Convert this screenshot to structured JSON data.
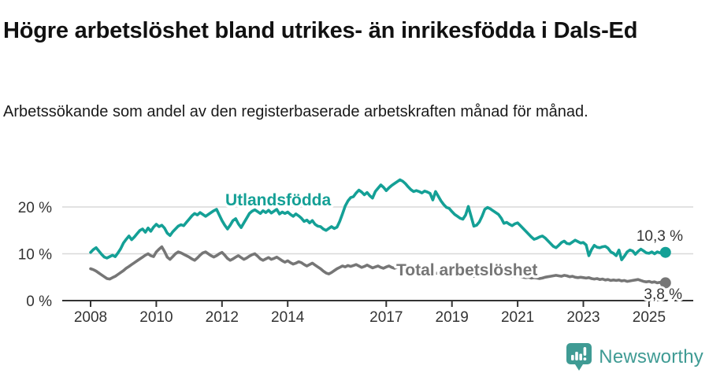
{
  "page": {
    "title": "Högre arbetslöshet bland utrikes- än inrikesfödda i Dals-Ed",
    "subtitle": "Arbetssökande som andel av den registerbaserade arbetskraften månad för månad."
  },
  "footer": {
    "brand": "Newsworthy",
    "icon": "newsworthy-pin-bar-chart-icon"
  },
  "colors": {
    "accent_teal": "#14a096",
    "series_gray": "#767676",
    "grid": "#d9d9d9",
    "axis": "#333333",
    "tick_text": "#333333",
    "end_label_text": "#333333",
    "title_text": "#111111",
    "logo_teal": "#3f9b94",
    "background": "#ffffff"
  },
  "chart_data": {
    "type": "line",
    "title": "",
    "xlabel": "",
    "ylabel": "",
    "x_unit": "month",
    "x_start_year": 2008,
    "x_start_month": 1,
    "x_tick_labels": [
      "2008",
      "2010",
      "2012",
      "2014",
      "2017",
      "2019",
      "2021",
      "2023",
      "2025"
    ],
    "x_tick_years": [
      2008,
      2010,
      2012,
      2014,
      2017,
      2019,
      2021,
      2023,
      2025
    ],
    "y_ticks": [
      {
        "v": 0,
        "label": "0 %"
      },
      {
        "v": 10,
        "label": "10 %"
      },
      {
        "v": 20,
        "label": "20 %"
      }
    ],
    "ylim": [
      0,
      27
    ],
    "grid": "horizontal",
    "legend_position": "inline-labels",
    "series": [
      {
        "name": "Utlandsfödda",
        "color": "#14a096",
        "end_label": "10,3 %",
        "end_value": 10.3,
        "values": [
          10.3,
          10.9,
          11.3,
          10.6,
          9.9,
          9.3,
          9.1,
          9.4,
          9.7,
          9.4,
          10.2,
          11.1,
          12.3,
          13.1,
          13.8,
          13.0,
          13.6,
          14.3,
          15.0,
          15.3,
          14.6,
          15.5,
          14.8,
          15.7,
          16.3,
          15.8,
          16.1,
          15.5,
          14.4,
          13.9,
          14.7,
          15.3,
          15.9,
          16.2,
          16.0,
          16.7,
          17.4,
          18.1,
          18.6,
          18.3,
          18.8,
          18.4,
          18.0,
          18.4,
          18.8,
          19.2,
          19.5,
          18.3,
          17.1,
          16.1,
          15.3,
          16.1,
          17.1,
          17.5,
          16.4,
          15.6,
          16.6,
          17.6,
          18.6,
          19.1,
          19.4,
          19.0,
          18.6,
          19.2,
          18.8,
          19.3,
          18.7,
          19.1,
          19.5,
          18.5,
          18.9,
          18.6,
          18.9,
          18.4,
          18.0,
          18.5,
          18.1,
          17.6,
          16.9,
          17.2,
          16.6,
          17.1,
          16.3,
          15.9,
          15.8,
          15.3,
          15.0,
          15.4,
          15.8,
          15.4,
          15.7,
          16.9,
          18.5,
          20.2,
          21.3,
          22.0,
          22.2,
          23.0,
          23.6,
          23.2,
          22.6,
          23.1,
          22.4,
          21.9,
          23.3,
          24.0,
          24.7,
          24.2,
          23.5,
          24.1,
          24.6,
          25.0,
          25.4,
          25.8,
          25.5,
          25.0,
          24.3,
          23.7,
          23.3,
          23.5,
          23.3,
          23.0,
          23.4,
          23.2,
          22.9,
          21.5,
          23.3,
          22.3,
          21.3,
          20.5,
          19.9,
          19.7,
          19.0,
          18.4,
          18.0,
          17.6,
          17.4,
          18.3,
          20.1,
          18.0,
          15.9,
          16.1,
          16.8,
          18.0,
          19.5,
          19.9,
          19.6,
          19.2,
          18.8,
          18.4,
          17.6,
          16.5,
          16.7,
          16.3,
          16.0,
          16.4,
          16.6,
          16.0,
          15.4,
          14.8,
          14.2,
          13.6,
          13.1,
          13.3,
          13.6,
          13.8,
          13.4,
          12.8,
          12.2,
          11.6,
          11.3,
          11.8,
          12.4,
          12.7,
          12.2,
          12.1,
          12.5,
          12.9,
          12.6,
          12.3,
          12.4,
          11.9,
          9.6,
          10.9,
          11.8,
          11.4,
          11.3,
          11.5,
          11.6,
          11.2,
          10.4,
          10.1,
          9.6,
          10.8,
          8.7,
          9.5,
          10.4,
          10.8,
          10.6,
          9.9,
          10.5,
          11.0,
          10.6,
          10.2,
          10.1,
          10.4,
          10.0,
          10.4,
          10.2,
          10.4,
          10.3
        ]
      },
      {
        "name": "Total arbetslöshet",
        "color": "#767676",
        "end_label": "3,8 %",
        "end_value": 3.8,
        "values": [
          6.8,
          6.6,
          6.3,
          5.9,
          5.5,
          5.1,
          4.7,
          4.6,
          4.9,
          5.2,
          5.6,
          6.0,
          6.4,
          6.9,
          7.3,
          7.7,
          8.1,
          8.5,
          8.9,
          9.3,
          9.7,
          10.0,
          9.6,
          9.4,
          10.4,
          11.0,
          11.5,
          10.5,
          9.3,
          8.8,
          9.4,
          10.0,
          10.4,
          10.2,
          9.9,
          9.6,
          9.3,
          8.9,
          8.6,
          9.1,
          9.7,
          10.2,
          10.4,
          10.0,
          9.6,
          9.3,
          9.6,
          10.0,
          10.3,
          9.7,
          9.0,
          8.6,
          8.9,
          9.3,
          9.6,
          9.2,
          8.8,
          9.1,
          9.5,
          9.8,
          10.0,
          9.5,
          8.9,
          8.6,
          8.9,
          9.2,
          8.8,
          9.0,
          9.3,
          8.9,
          8.5,
          8.2,
          8.5,
          8.1,
          7.8,
          8.0,
          8.3,
          8.1,
          7.7,
          7.4,
          7.7,
          8.0,
          7.6,
          7.2,
          6.8,
          6.3,
          5.9,
          5.7,
          6.0,
          6.4,
          6.8,
          7.1,
          7.4,
          7.2,
          7.5,
          7.3,
          7.5,
          7.7,
          7.4,
          7.1,
          7.3,
          7.6,
          7.3,
          7.0,
          7.2,
          7.4,
          7.1,
          6.9,
          7.2,
          7.4,
          7.1,
          6.9,
          7.1,
          6.8,
          6.6,
          6.8,
          6.5,
          6.7,
          6.4,
          6.6,
          6.4,
          6.2,
          6.3,
          6.1,
          5.9,
          6.1,
          5.8,
          5.9,
          5.7,
          5.8,
          5.6,
          5.7,
          5.8,
          5.6,
          5.5,
          5.6,
          5.4,
          5.5,
          5.3,
          5.4,
          5.2,
          5.3,
          5.2,
          5.3,
          5.4,
          5.6,
          5.8,
          5.9,
          5.7,
          5.8,
          5.6,
          5.5,
          5.4,
          5.3,
          5.2,
          5.1,
          5.2,
          5.1,
          5.0,
          4.9,
          5.0,
          4.8,
          4.9,
          4.8,
          4.7,
          4.8,
          5.0,
          5.1,
          5.2,
          5.3,
          5.4,
          5.3,
          5.2,
          5.4,
          5.3,
          5.1,
          5.2,
          5.0,
          4.9,
          5.0,
          4.9,
          4.8,
          4.9,
          4.7,
          4.6,
          4.7,
          4.5,
          4.6,
          4.4,
          4.5,
          4.3,
          4.4,
          4.3,
          4.4,
          4.2,
          4.3,
          4.1,
          4.2,
          4.3,
          4.4,
          4.5,
          4.3,
          4.1,
          4.0,
          4.1,
          3.9,
          4.0,
          3.8,
          3.9,
          3.7,
          3.8
        ]
      }
    ]
  }
}
